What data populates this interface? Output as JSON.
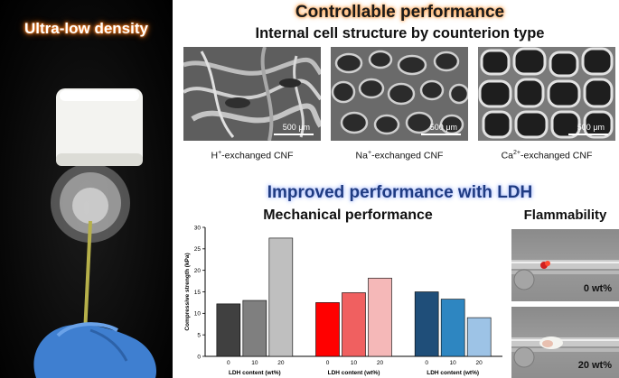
{
  "photo": {
    "title": "Ultra-low density"
  },
  "header": {
    "title": "Controllable performance",
    "subtitle": "Internal cell structure by counterion type"
  },
  "sem_images": [
    {
      "caption_main": "H",
      "caption_sup": "+",
      "caption_tail": "-exchanged CNF",
      "scale": "500 μm"
    },
    {
      "caption_main": "Na",
      "caption_sup": "+",
      "caption_tail": "-exchanged CNF",
      "scale": "500 μm"
    },
    {
      "caption_main": "Ca",
      "caption_sup": "2+",
      "caption_tail": "-exchanged CNF",
      "scale": "500 μm"
    }
  ],
  "ldh": {
    "title": "Improved performance with LDH",
    "mechanical_title": "Mechanical performance",
    "flammability_title": "Flammability",
    "flammability_labels": [
      "0 wt%",
      "20 wt%"
    ]
  },
  "chart_data": {
    "type": "bar",
    "ylabel": "Compressive strength (kPa)",
    "ylim": [
      0,
      30
    ],
    "yticks": [
      0,
      5,
      10,
      15,
      20,
      25,
      30
    ],
    "grid": false,
    "groups": [
      {
        "xlabel": "LDH content (wt%)",
        "categories": [
          "0",
          "10",
          "20"
        ],
        "values": [
          12.2,
          13.0,
          27.5
        ],
        "colors": [
          "#404040",
          "#7f7f7f",
          "#bfbfbf"
        ]
      },
      {
        "xlabel": "LDH content (wt%)",
        "categories": [
          "0",
          "10",
          "20"
        ],
        "values": [
          12.5,
          14.8,
          18.2
        ],
        "colors": [
          "#ff0000",
          "#f06060",
          "#f5b8b8"
        ]
      },
      {
        "xlabel": "LDH content (wt%)",
        "categories": [
          "0",
          "10",
          "20"
        ],
        "values": [
          15.0,
          13.3,
          9.0
        ],
        "colors": [
          "#1f4e79",
          "#2e86c1",
          "#9dc3e6"
        ]
      }
    ]
  }
}
